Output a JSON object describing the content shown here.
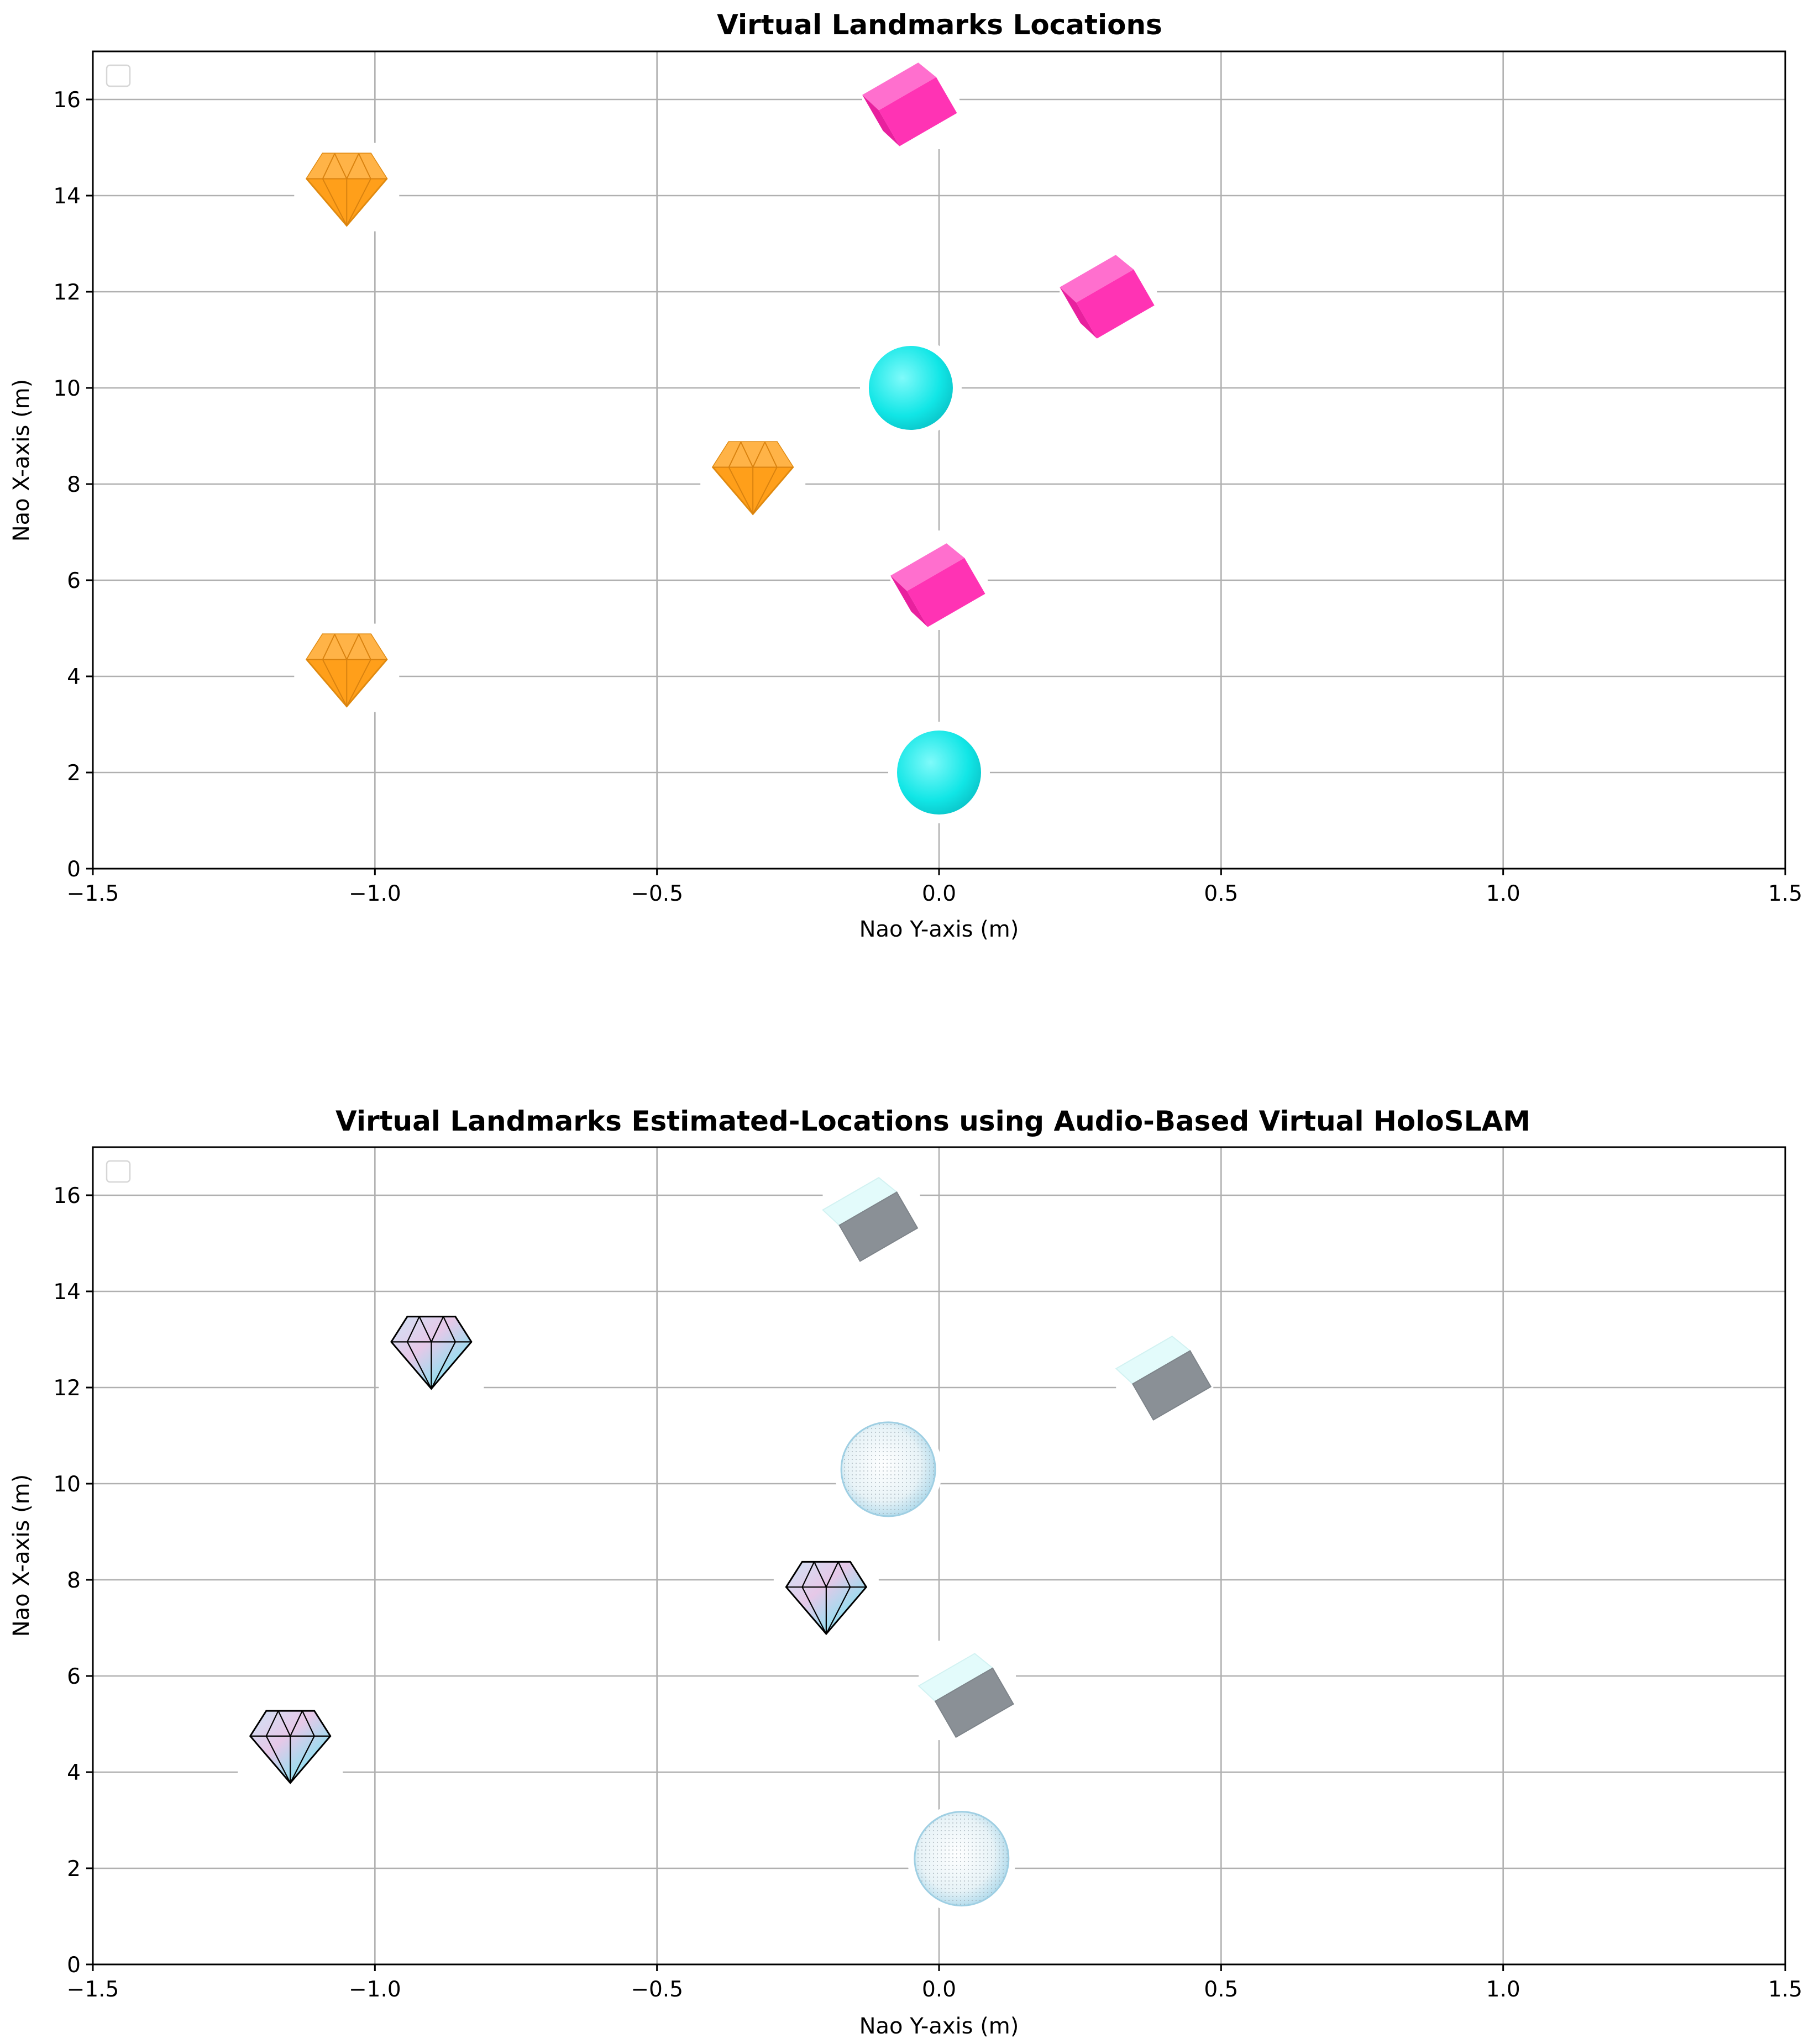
{
  "chart_data": [
    {
      "type": "scatter",
      "title": "Virtual Landmarks Locations",
      "xlabel": "Nao Y-axis (m)",
      "ylabel": "Nao X-axis (m)",
      "xlim": [
        -1.5,
        1.5
      ],
      "ylim": [
        0,
        17
      ],
      "xticks": [
        -1.5,
        -1.0,
        -0.5,
        0.0,
        0.5,
        1.0,
        1.5
      ],
      "xtick_labels": [
        "−1.5",
        "−1.0",
        "−0.5",
        "0.0",
        "0.5",
        "1.0",
        "1.5"
      ],
      "yticks": [
        0,
        2,
        4,
        6,
        8,
        10,
        12,
        14,
        16
      ],
      "ytick_labels": [
        "0",
        "2",
        "4",
        "6",
        "8",
        "10",
        "12",
        "14",
        "16"
      ],
      "grid": true,
      "legend": "top-left (empty)",
      "style": "true",
      "series": [
        {
          "name": "sphere",
          "marker": "sphere-icon",
          "color": "#19ecec",
          "points": [
            {
              "x": 0.0,
              "y": 2.0
            },
            {
              "x": -0.05,
              "y": 10.0
            }
          ]
        },
        {
          "name": "cube",
          "marker": "cube-icon",
          "color": "#ff33b4",
          "points": [
            {
              "x": 0.0,
              "y": 6.0
            },
            {
              "x": 0.3,
              "y": 12.0
            },
            {
              "x": -0.05,
              "y": 16.0
            }
          ]
        },
        {
          "name": "diamond",
          "marker": "diamond-icon",
          "color": "#ff9f1a",
          "points": [
            {
              "x": -1.05,
              "y": 4.2
            },
            {
              "x": -0.33,
              "y": 8.2
            },
            {
              "x": -1.05,
              "y": 14.2
            }
          ]
        }
      ]
    },
    {
      "type": "scatter",
      "title": "Virtual Landmarks Estimated-Locations using Audio-Based Virtual HoloSLAM",
      "xlabel": "Nao Y-axis (m)",
      "ylabel": "Nao X-axis (m)",
      "xlim": [
        -1.5,
        1.5
      ],
      "ylim": [
        0,
        17
      ],
      "xticks": [
        -1.5,
        -1.0,
        -0.5,
        0.0,
        0.5,
        1.0,
        1.5
      ],
      "xtick_labels": [
        "−1.5",
        "−1.0",
        "−0.5",
        "0.0",
        "0.5",
        "1.0",
        "1.5"
      ],
      "yticks": [
        0,
        2,
        4,
        6,
        8,
        10,
        12,
        14,
        16
      ],
      "ytick_labels": [
        "0",
        "2",
        "4",
        "6",
        "8",
        "10",
        "12",
        "14",
        "16"
      ],
      "grid": true,
      "legend": "top-left (empty)",
      "style": "estimated",
      "series": [
        {
          "name": "sphere",
          "marker": "sphere-icon",
          "color": "#bfe6f2",
          "points": [
            {
              "x": 0.04,
              "y": 2.2
            },
            {
              "x": -0.09,
              "y": 10.3
            }
          ]
        },
        {
          "name": "cube",
          "marker": "cube-icon",
          "color": "#8a9098",
          "points": [
            {
              "x": 0.05,
              "y": 5.7
            },
            {
              "x": 0.4,
              "y": 12.3
            },
            {
              "x": -0.12,
              "y": 15.6
            }
          ]
        },
        {
          "name": "diamond",
          "marker": "diamond-icon",
          "color": "#a9d8ee",
          "points": [
            {
              "x": -1.15,
              "y": 4.6
            },
            {
              "x": -0.2,
              "y": 7.7
            },
            {
              "x": -0.9,
              "y": 12.8
            }
          ]
        }
      ]
    }
  ]
}
